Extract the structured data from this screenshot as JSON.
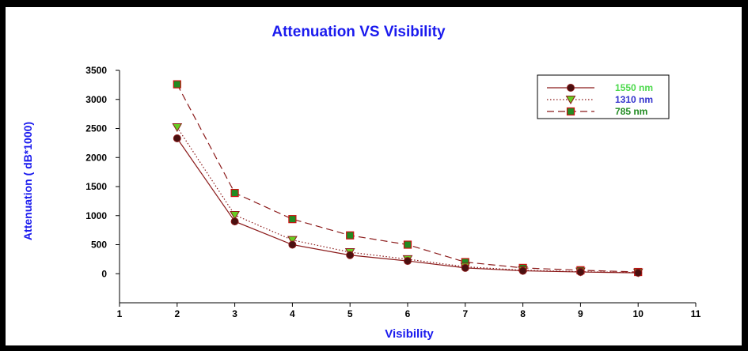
{
  "chart_data": {
    "type": "line",
    "title": "Attenuation VS Visibility",
    "xlabel": "Visibility",
    "ylabel": "Attenuation ( dB*1000)",
    "xlim": [
      1,
      11
    ],
    "ylim": [
      -500,
      3500
    ],
    "xticks": [
      1,
      2,
      3,
      4,
      5,
      6,
      7,
      8,
      9,
      10,
      11
    ],
    "yticks": [
      0,
      500,
      1000,
      1500,
      2000,
      2500,
      3000,
      3500
    ],
    "x": [
      2,
      3,
      4,
      5,
      6,
      7,
      8,
      9,
      10
    ],
    "grid": false,
    "legend_position": "top-right",
    "series": [
      {
        "name": "1550 nm",
        "values": [
          2330,
          900,
          500,
          320,
          220,
          100,
          50,
          30,
          15
        ],
        "color": "#8b1a1a",
        "marker": "circle",
        "dash": "solid",
        "label_color": "#4cd94c"
      },
      {
        "name": "1310 nm",
        "values": [
          2520,
          1010,
          580,
          370,
          250,
          120,
          60,
          35,
          20
        ],
        "color": "#8b1a1a",
        "marker": "triangle-down",
        "dash": "dotted",
        "label_color": "#3333cc"
      },
      {
        "name": "785 nm",
        "values": [
          3260,
          1390,
          940,
          660,
          500,
          200,
          100,
          60,
          30
        ],
        "color": "#8b1a1a",
        "marker": "square",
        "dash": "dashed",
        "label_color": "#228b22"
      }
    ],
    "title_color": "#1a1aee",
    "axis_label_color": "#1a1aee",
    "axis_color": "#000000"
  }
}
